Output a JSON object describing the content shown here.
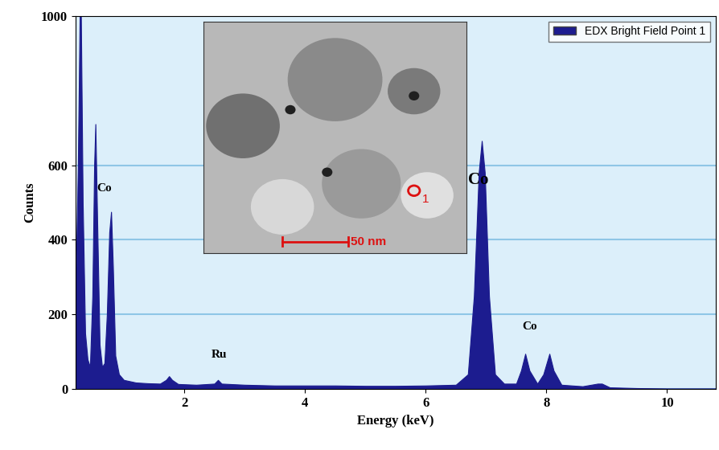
{
  "chart_data": {
    "type": "area",
    "x_label": "Energy (keV)",
    "y_label": "Counts",
    "xlim": [
      0.2,
      10.8
    ],
    "xticks": [
      2,
      4,
      6,
      8,
      10
    ],
    "ylim": [
      0,
      1000
    ],
    "yticks": [
      0,
      200,
      400,
      600,
      1000
    ],
    "grid": true,
    "legend": "upper right",
    "series": [
      {
        "name": "EDX Bright Field Point 1",
        "color": "#1c1c8f",
        "x": [
          0.2,
          0.24,
          0.27,
          0.29,
          0.32,
          0.36,
          0.4,
          0.44,
          0.48,
          0.51,
          0.53,
          0.56,
          0.6,
          0.64,
          0.68,
          0.72,
          0.76,
          0.79,
          0.82,
          0.86,
          0.92,
          1.0,
          1.2,
          1.4,
          1.6,
          1.7,
          1.75,
          1.8,
          1.9,
          2.2,
          2.5,
          2.56,
          2.62,
          3.0,
          3.5,
          4.0,
          4.5,
          5.0,
          5.5,
          6.0,
          6.5,
          6.7,
          6.8,
          6.88,
          6.93,
          6.98,
          7.05,
          7.15,
          7.3,
          7.5,
          7.58,
          7.65,
          7.72,
          7.85,
          7.95,
          8.05,
          8.12,
          8.25,
          8.6,
          8.85,
          8.92,
          9.05,
          9.5,
          10.0,
          10.8
        ],
        "values": [
          250,
          600,
          1000,
          1000,
          500,
          150,
          80,
          60,
          250,
          600,
          710,
          450,
          120,
          60,
          70,
          200,
          420,
          475,
          330,
          90,
          40,
          25,
          18,
          16,
          15,
          25,
          35,
          25,
          14,
          12,
          15,
          25,
          15,
          12,
          10,
          10,
          10,
          9,
          9,
          10,
          12,
          40,
          250,
          580,
          665,
          580,
          250,
          40,
          15,
          15,
          50,
          95,
          50,
          15,
          40,
          95,
          50,
          12,
          8,
          15,
          15,
          5,
          3,
          2,
          2
        ]
      }
    ],
    "annotations": [
      {
        "text": "Co",
        "x": 0.55,
        "y": 530
      },
      {
        "text": "Ru",
        "x": 2.45,
        "y": 85
      },
      {
        "text": "Co",
        "x": 6.7,
        "y": 550
      },
      {
        "text": "Co",
        "x": 7.6,
        "y": 160
      }
    ],
    "inset": {
      "scale_bar": "50 nm",
      "point_label": "1"
    }
  }
}
